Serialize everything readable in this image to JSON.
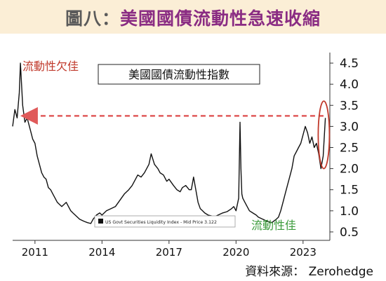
{
  "header": {
    "title_prefix": "圖八：",
    "title_main": "美國國債流動性急速收縮"
  },
  "source": "資料來源： Zerohedge",
  "colors": {
    "title_bg": "#fbeed6",
    "title_main": "#8a2c83",
    "series_line": "#111111",
    "bad_liquidity": "#c0392b",
    "good_liquidity": "#3a9a3a",
    "arrow": "#e05a5a",
    "highlight_ellipse": "#c0392b"
  },
  "chart_data": {
    "type": "line",
    "chart_title": "美國國債流動性指數",
    "legend": {
      "label": "US Govt Securities Liquidity Index - Mid Price 3.122",
      "placement": "bottom-left"
    },
    "xlim": [
      2010.0,
      2024.2
    ],
    "ylim": [
      0.3,
      4.75
    ],
    "x_ticks": [
      2011,
      2014,
      2017,
      2020,
      2023
    ],
    "x_tick_labels": [
      "2011",
      "2014",
      "2017",
      "2020",
      "2023"
    ],
    "y_ticks": [
      0.5,
      1.0,
      1.5,
      2.0,
      2.5,
      3.0,
      3.5,
      4.0,
      4.5
    ],
    "y_tick_labels": [
      "0.5",
      "1.0",
      "1.5",
      "2.0",
      "2.5",
      "3.0",
      "3.5",
      "4.0",
      "4.5"
    ],
    "grid": false,
    "annotations": {
      "bad_label": "流動性欠佳",
      "good_label": "流動性佳",
      "arrow_level": 3.25
    },
    "series": [
      {
        "x": [
          2010.0,
          2010.1,
          2010.2,
          2010.3,
          2010.35,
          2010.45,
          2010.55,
          2010.65,
          2010.8,
          2010.9,
          2011.0,
          2011.1,
          2011.2,
          2011.3,
          2011.4,
          2011.5,
          2011.6,
          2011.7,
          2011.8,
          2011.9,
          2012.0,
          2012.1,
          2012.2,
          2012.3,
          2012.4,
          2012.5,
          2012.6,
          2012.7,
          2012.8,
          2012.9,
          2013.0,
          2013.2,
          2013.35,
          2013.5,
          2013.6,
          2013.75,
          2013.9,
          2014.0,
          2014.2,
          2014.4,
          2014.6,
          2014.8,
          2015.0,
          2015.2,
          2015.35,
          2015.5,
          2015.6,
          2015.75,
          2015.9,
          2016.0,
          2016.1,
          2016.2,
          2016.35,
          2016.5,
          2016.6,
          2016.75,
          2016.9,
          2017.0,
          2017.2,
          2017.35,
          2017.5,
          2017.6,
          2017.75,
          2017.9,
          2018.0,
          2018.1,
          2018.2,
          2018.3,
          2018.4,
          2018.5,
          2018.6,
          2018.75,
          2018.9,
          2019.0,
          2019.2,
          2019.4,
          2019.6,
          2019.8,
          2019.9,
          2020.0,
          2020.12,
          2020.18,
          2020.22,
          2020.26,
          2020.3,
          2020.4,
          2020.5,
          2020.6,
          2020.75,
          2020.9,
          2021.0,
          2021.2,
          2021.4,
          2021.6,
          2021.8,
          2021.9,
          2022.0,
          2022.1,
          2022.2,
          2022.3,
          2022.4,
          2022.5,
          2022.6,
          2022.7,
          2022.8,
          2022.9,
          2023.0,
          2023.1,
          2023.2,
          2023.3,
          2023.4,
          2023.5,
          2023.6,
          2023.7,
          2023.8,
          2023.9,
          2024.0
        ],
        "y": [
          3.0,
          3.4,
          3.2,
          3.8,
          4.5,
          3.5,
          3.1,
          3.2,
          2.9,
          2.7,
          2.6,
          2.3,
          2.1,
          1.9,
          1.8,
          1.75,
          1.55,
          1.5,
          1.4,
          1.3,
          1.2,
          1.15,
          1.1,
          1.15,
          1.2,
          1.1,
          1.0,
          0.95,
          0.9,
          0.85,
          0.8,
          0.75,
          0.72,
          0.7,
          0.8,
          0.9,
          0.95,
          0.9,
          1.0,
          1.05,
          1.1,
          1.25,
          1.4,
          1.5,
          1.6,
          1.75,
          1.85,
          1.8,
          1.9,
          2.0,
          2.1,
          2.35,
          2.1,
          2.0,
          1.9,
          1.85,
          1.7,
          1.75,
          1.6,
          1.5,
          1.45,
          1.55,
          1.6,
          1.5,
          1.5,
          1.8,
          1.5,
          1.2,
          1.05,
          1.0,
          0.95,
          0.9,
          0.88,
          0.85,
          0.9,
          0.95,
          0.98,
          1.05,
          1.1,
          1.0,
          1.3,
          3.1,
          2.0,
          1.4,
          1.3,
          1.2,
          1.1,
          1.0,
          0.95,
          0.9,
          0.85,
          0.8,
          0.75,
          0.72,
          0.8,
          0.85,
          1.0,
          1.2,
          1.4,
          1.6,
          1.8,
          2.0,
          2.3,
          2.4,
          2.5,
          2.6,
          2.8,
          3.0,
          2.85,
          2.6,
          2.75,
          2.5,
          2.6,
          2.35,
          2.0,
          2.3,
          3.2
        ]
      }
    ]
  }
}
